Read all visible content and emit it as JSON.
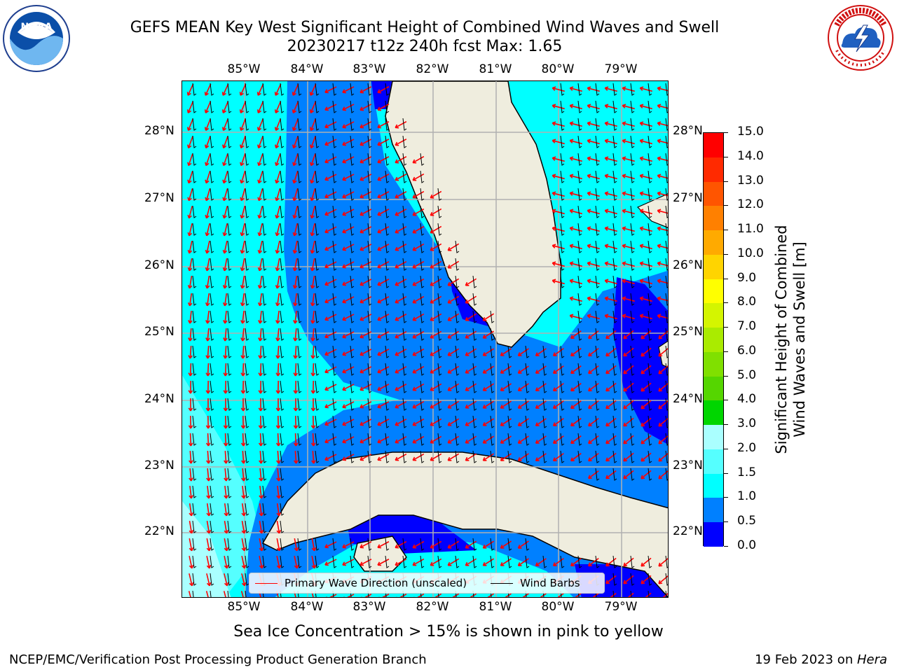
{
  "title_line1": "GEFS MEAN Key West Significant Height of Combined Wind Waves and Swell",
  "title_line2": "20230217 t12z 240h fcst   Max: 1.65",
  "logos": {
    "left": {
      "name": "NOAA",
      "text": "NOAA",
      "ring_text": "NATIONAL OCEANIC AND ATMOSPHERIC ADMINISTRATION · U.S. DEPARTMENT OF COMMERCE"
    },
    "right": {
      "name": "National Weather Service",
      "ring_text": "NATIONAL WEATHER SERVICE"
    }
  },
  "map": {
    "lon_labels": [
      "85°W",
      "84°W",
      "83°W",
      "82°W",
      "81°W",
      "80°W",
      "79°W"
    ],
    "lat_labels": [
      "28°N",
      "27°N",
      "26°N",
      "25°N",
      "24°N",
      "23°N",
      "22°N"
    ],
    "lon_range": [
      -86.0,
      -78.3
    ],
    "lat_range": [
      21.0,
      28.75
    ],
    "gridlines": true,
    "colors": {
      "land": "#efedde",
      "coast": "#000000",
      "grid": "#b0b0b0",
      "wave_arrow": "#ff0000",
      "wind_barb": "#000000"
    }
  },
  "colorbar": {
    "label_line1": "Significant Height of Combined",
    "label_line2": "Wind Waves and Swell [m]",
    "ticks": [
      "15.0",
      "14.0",
      "13.0",
      "12.0",
      "11.0",
      "10.0",
      "9.0",
      "8.0",
      "7.0",
      "6.0",
      "5.0",
      "4.0",
      "3.0",
      "2.0",
      "1.5",
      "1.0",
      "0.5",
      "0.0"
    ],
    "colors": [
      "#ff0000",
      "#ff2a00",
      "#ff5500",
      "#ff8000",
      "#ffaa00",
      "#ffd400",
      "#ffff00",
      "#d4f500",
      "#aaeb00",
      "#80e000",
      "#55d600",
      "#00d600",
      "#55f580",
      "#aaffff",
      "#55ffff",
      "#00ffff",
      "#0080ff",
      "#0000ff"
    ]
  },
  "legend": {
    "items": [
      {
        "label": "Primary Wave Direction (unscaled)",
        "color": "#ff0000"
      },
      {
        "label": "Wind Barbs",
        "color": "#000000"
      }
    ]
  },
  "sea_ice_note": "Sea Ice Concentration > 15% is shown in pink to yellow",
  "footer": {
    "left": "NCEP/EMC/Verification Post Processing Product Generation Branch",
    "right_prefix": "19 Feb 2023 on ",
    "right_machine": "Hera"
  }
}
